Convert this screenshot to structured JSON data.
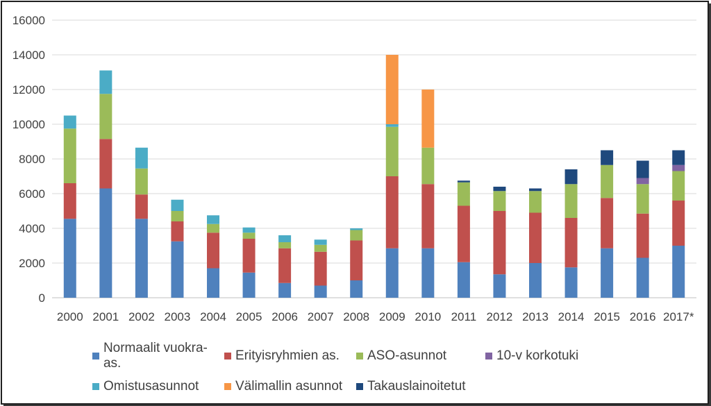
{
  "chart_data": {
    "type": "bar",
    "stacked": true,
    "categories": [
      "2000",
      "2001",
      "2002",
      "2003",
      "2004",
      "2005",
      "2006",
      "2007",
      "2008",
      "2009",
      "2010",
      "2011",
      "2012",
      "2013",
      "2014",
      "2015",
      "2016",
      "2017*"
    ],
    "ylim": [
      0,
      16000
    ],
    "yticks": [
      0,
      2000,
      4000,
      6000,
      8000,
      10000,
      12000,
      14000,
      16000
    ],
    "grid": true,
    "legend_position": "bottom",
    "series": [
      {
        "name": "Normaalit vuokra-as.",
        "color": "#4f81bd",
        "values": [
          4550,
          6300,
          4550,
          3250,
          1700,
          1450,
          850,
          700,
          1000,
          2850,
          2850,
          2050,
          1350,
          2000,
          1750,
          2850,
          2300,
          3000
        ]
      },
      {
        "name": "Erityisryhmien as.",
        "color": "#c0504d",
        "values": [
          2050,
          2850,
          1400,
          1150,
          2050,
          1950,
          2000,
          1950,
          2300,
          4150,
          3700,
          3250,
          3650,
          2900,
          2850,
          2900,
          2550,
          2600
        ]
      },
      {
        "name": "ASO-asunnot",
        "color": "#9bbb59",
        "values": [
          3150,
          2600,
          1500,
          600,
          500,
          350,
          350,
          400,
          600,
          2850,
          2100,
          1350,
          1150,
          1250,
          1950,
          1900,
          1700,
          1700
        ]
      },
      {
        "name": "10-v korkotuki",
        "color": "#8064a2",
        "values": [
          0,
          0,
          0,
          0,
          0,
          0,
          0,
          0,
          0,
          0,
          0,
          0,
          0,
          0,
          0,
          0,
          350,
          350
        ]
      },
      {
        "name": "Omistusasunnot",
        "color": "#4bacc6",
        "values": [
          750,
          1350,
          1200,
          650,
          500,
          300,
          400,
          300,
          100,
          150,
          0,
          0,
          0,
          0,
          0,
          0,
          0,
          0
        ]
      },
      {
        "name": "Välimallin asunnot",
        "color": "#f79646",
        "values": [
          0,
          0,
          0,
          0,
          0,
          0,
          0,
          0,
          0,
          4000,
          3350,
          0,
          0,
          0,
          0,
          0,
          0,
          0
        ]
      },
      {
        "name": "Takauslainoitetut",
        "color": "#1f497d",
        "values": [
          0,
          0,
          0,
          0,
          0,
          0,
          0,
          0,
          0,
          0,
          0,
          100,
          250,
          150,
          850,
          850,
          1000,
          850
        ]
      }
    ],
    "legend_rows": [
      [
        "Normaalit vuokra-as.",
        "Erityisryhmien as.",
        "ASO-asunnot",
        "10-v korkotuki"
      ],
      [
        "Omistusasunnot",
        "Välimallin asunnot",
        "Takauslainoitetut"
      ]
    ]
  }
}
